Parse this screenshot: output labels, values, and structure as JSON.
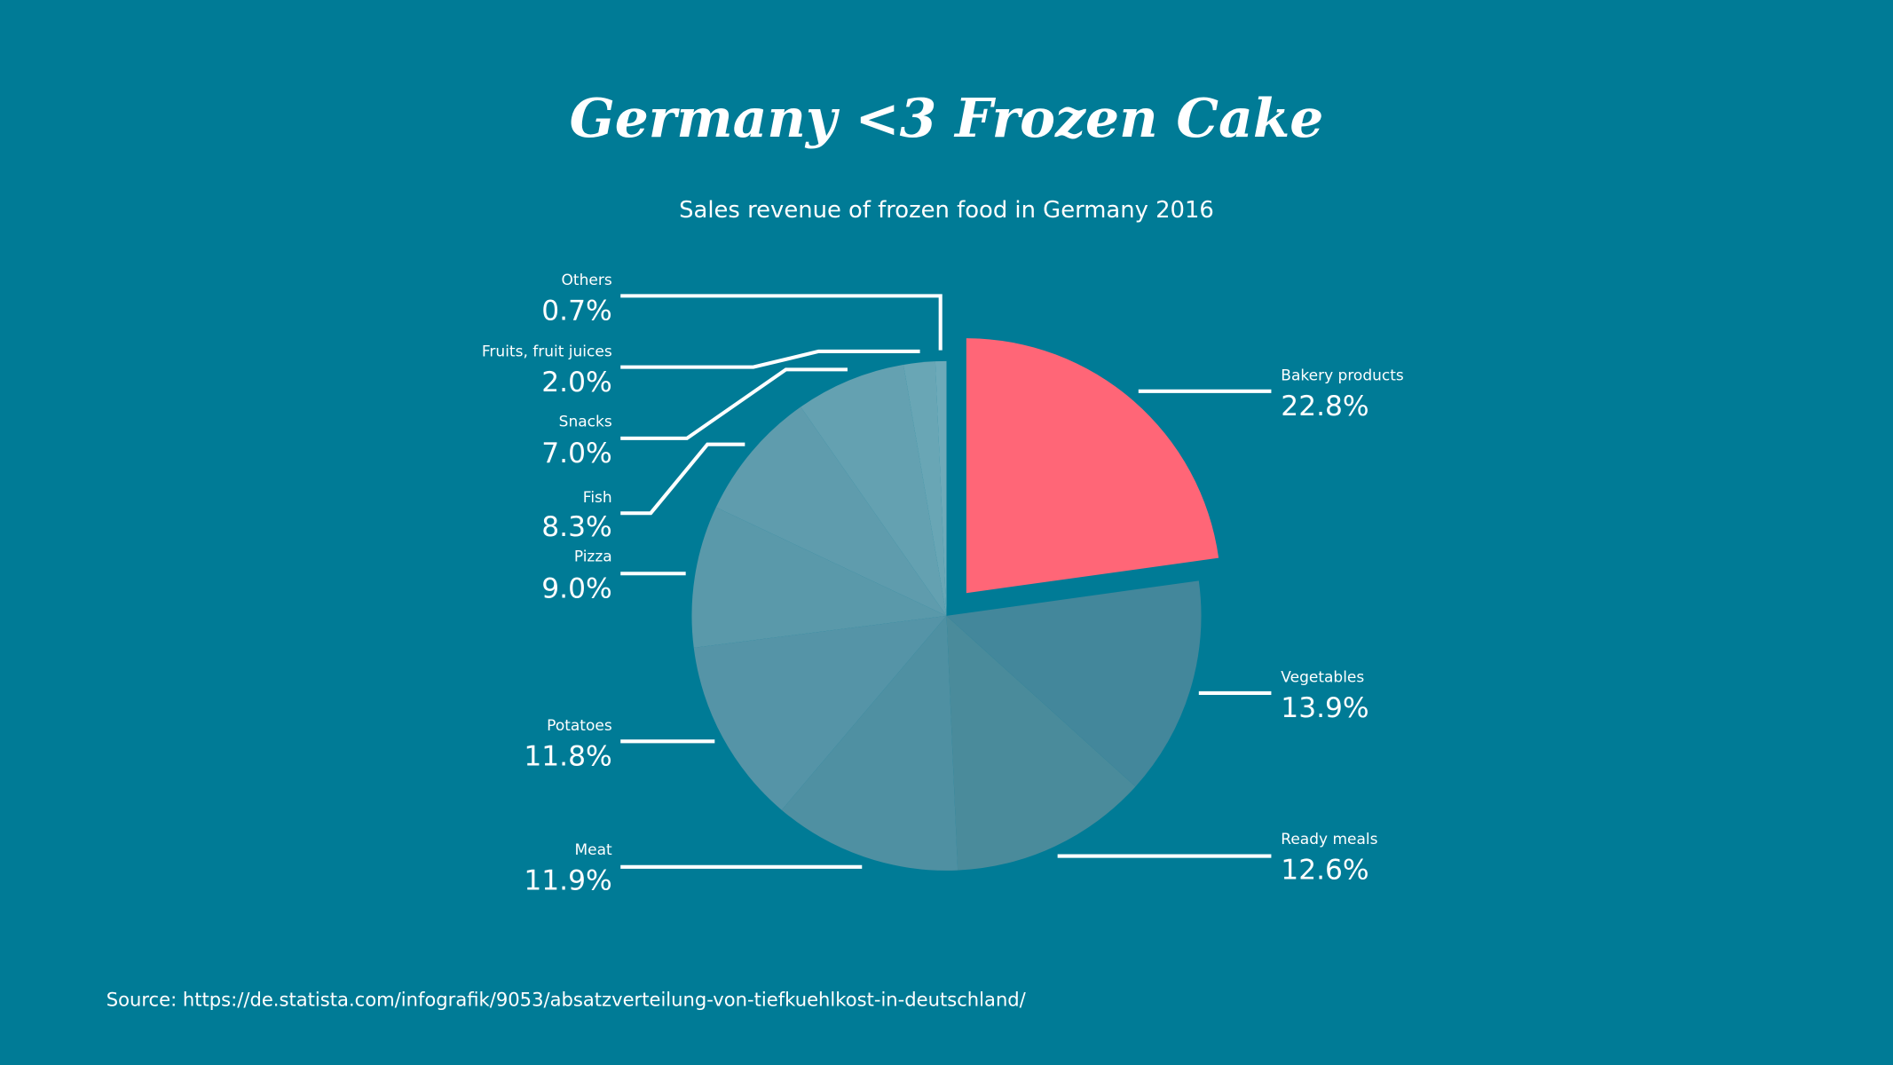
{
  "colors": {
    "background": "#007b96",
    "highlight": "#ff6677"
  },
  "chart_data": {
    "type": "pie",
    "title": "Germany <3 Frozen Cake",
    "subtitle": "Sales revenue of frozen food in Germany 2016",
    "source": "Source: https://de.statista.com/infografik/9053/absatzverteilung-von-tiefkuehlkost-in-deutschland/",
    "exploded": "Bakery products",
    "slices": [
      {
        "label": "Bakery products",
        "value": 22.8,
        "display": "22.8%",
        "color": "#ff6677"
      },
      {
        "label": "Vegetables",
        "value": 13.9,
        "display": "13.9%",
        "color": "#43879b"
      },
      {
        "label": "Ready meals",
        "value": 12.6,
        "display": "12.6%",
        "color": "#4a8b9b"
      },
      {
        "label": "Meat",
        "value": 11.9,
        "display": "11.9%",
        "color": "#4f90a2"
      },
      {
        "label": "Potatoes",
        "value": 11.8,
        "display": "11.8%",
        "color": "#5594a7"
      },
      {
        "label": "Pizza",
        "value": 9.0,
        "display": "9.0%",
        "color": "#5a99aa"
      },
      {
        "label": "Fish",
        "value": 8.3,
        "display": "8.3%",
        "color": "#5f9cad"
      },
      {
        "label": "Snacks",
        "value": 7.0,
        "display": "7.0%",
        "color": "#64a1b1"
      },
      {
        "label": "Fruits, fruit juices",
        "value": 2.0,
        "display": "2.0%",
        "color": "#69a6b5"
      },
      {
        "label": "Others",
        "value": 0.7,
        "display": "0.7%",
        "color": "#6eaab9"
      }
    ]
  }
}
